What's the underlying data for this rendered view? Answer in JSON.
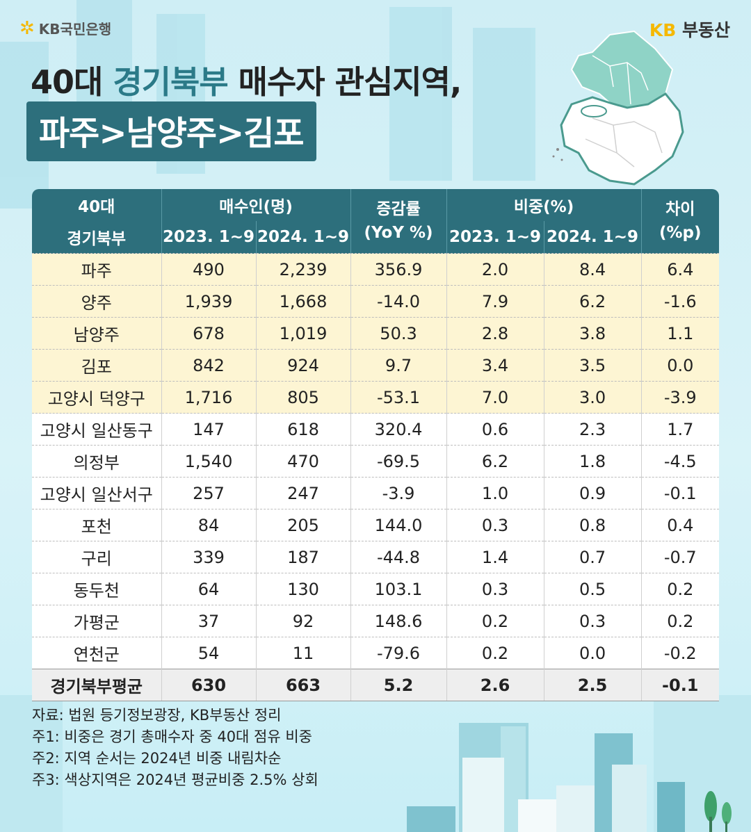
{
  "brand": {
    "left_label": "KB국민은행",
    "right_kb": "KB",
    "right_label": "부동산"
  },
  "title": {
    "line1_prefix": "40대 ",
    "line1_highlight": "경기북부",
    "line1_suffix": " 매수자 관심지역,",
    "line2": "파주>남양주>김포"
  },
  "table": {
    "header_top": [
      "40대",
      "매수인(명)",
      "증감률 (YoY %)",
      "비중(%)",
      "차이 (%p)"
    ],
    "header_region": "경기북부",
    "header_sub": [
      "2023. 1~9",
      "2024. 1~9",
      "2023. 1~9",
      "2024. 1~9"
    ],
    "rows": [
      {
        "region": "파주",
        "b2023": "490",
        "b2024": "2,239",
        "yoy": "356.9",
        "s2023": "2.0",
        "s2024": "8.4",
        "diff": "6.4"
      },
      {
        "region": "양주",
        "b2023": "1,939",
        "b2024": "1,668",
        "yoy": "-14.0",
        "s2023": "7.9",
        "s2024": "6.2",
        "diff": "-1.6"
      },
      {
        "region": "남양주",
        "b2023": "678",
        "b2024": "1,019",
        "yoy": "50.3",
        "s2023": "2.8",
        "s2024": "3.8",
        "diff": "1.1"
      },
      {
        "region": "김포",
        "b2023": "842",
        "b2024": "924",
        "yoy": "9.7",
        "s2023": "3.4",
        "s2024": "3.5",
        "diff": "0.0"
      },
      {
        "region": "고양시 덕양구",
        "b2023": "1,716",
        "b2024": "805",
        "yoy": "-53.1",
        "s2023": "7.0",
        "s2024": "3.0",
        "diff": "-3.9"
      },
      {
        "region": "고양시 일산동구",
        "b2023": "147",
        "b2024": "618",
        "yoy": "320.4",
        "s2023": "0.6",
        "s2024": "2.3",
        "diff": "1.7"
      },
      {
        "region": "의정부",
        "b2023": "1,540",
        "b2024": "470",
        "yoy": "-69.5",
        "s2023": "6.2",
        "s2024": "1.8",
        "diff": "-4.5"
      },
      {
        "region": "고양시 일산서구",
        "b2023": "257",
        "b2024": "247",
        "yoy": "-3.9",
        "s2023": "1.0",
        "s2024": "0.9",
        "diff": "-0.1"
      },
      {
        "region": "포천",
        "b2023": "84",
        "b2024": "205",
        "yoy": "144.0",
        "s2023": "0.3",
        "s2024": "0.8",
        "diff": "0.4"
      },
      {
        "region": "구리",
        "b2023": "339",
        "b2024": "187",
        "yoy": "-44.8",
        "s2023": "1.4",
        "s2024": "0.7",
        "diff": "-0.7"
      },
      {
        "region": "동두천",
        "b2023": "64",
        "b2024": "130",
        "yoy": "103.1",
        "s2023": "0.3",
        "s2024": "0.5",
        "diff": "0.2"
      },
      {
        "region": "가평군",
        "b2023": "37",
        "b2024": "92",
        "yoy": "148.6",
        "s2023": "0.2",
        "s2024": "0.3",
        "diff": "0.2"
      },
      {
        "region": "연천군",
        "b2023": "54",
        "b2024": "11",
        "yoy": "-79.6",
        "s2023": "0.2",
        "s2024": "0.0",
        "diff": "-0.2"
      }
    ],
    "highlight_rows": 5,
    "average": {
      "region": "경기북부평균",
      "b2023": "630",
      "b2024": "663",
      "yoy": "5.2",
      "s2023": "2.6",
      "s2024": "2.5",
      "diff": "-0.1"
    }
  },
  "notes": [
    "자료: 법원 등기정보광장, KB부동산 정리",
    "주1: 비중은 경기 총매수자 중 40대 점유 비중",
    "주2: 지역 순서는 2024년 비중 내림차순",
    "주3: 색상지역은 2024년 평균비중 2.5% 상회"
  ],
  "colors": {
    "header_bg": "#2d6f7c",
    "highlight_row": "#fdf5d3",
    "title_highlight": "#2b7a88",
    "brand_yellow": "#f5b800"
  }
}
